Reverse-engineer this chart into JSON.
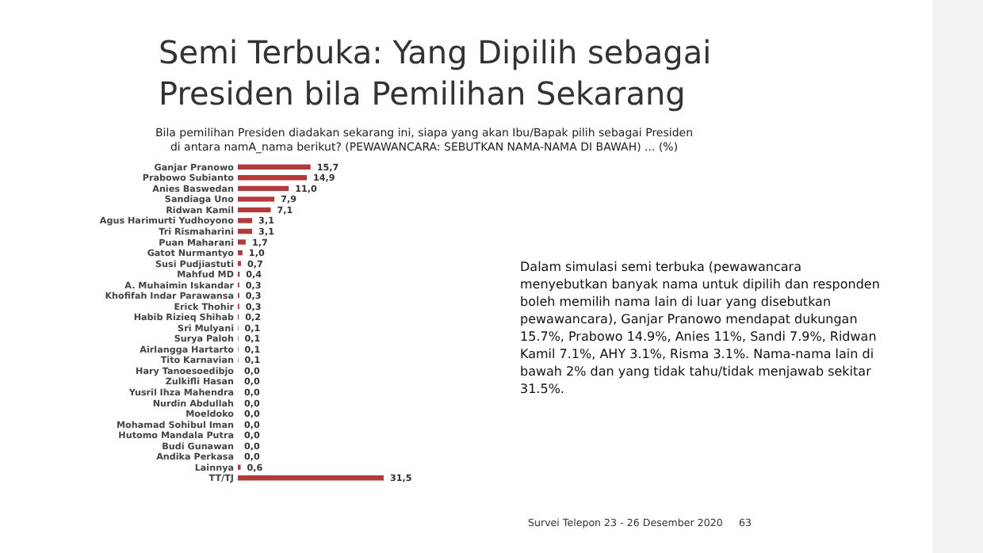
{
  "chart_data": {
    "type": "bar",
    "orientation": "horizontal",
    "title": "Semi Terbuka: Yang Dipilih sebagai Presiden bila Pemilihan Sekarang",
    "subtitle": "Bila pemilihan Presiden diadakan sekarang ini, siapa yang akan Ibu/Bapak pilih sebagai Presiden di antara namA_nama berikut? (PEWAWANCARA: SEBUTKAN NAMA-NAMA DI BAWAH) ... (%)",
    "categories": [
      "Ganjar Pranowo",
      "Prabowo Subianto",
      "Anies Baswedan",
      "Sandiaga Uno",
      "Ridwan Kamil",
      "Agus Harimurti Yudhoyono",
      "Tri Rismaharini",
      "Puan Maharani",
      "Gatot Nurmantyo",
      "Susi Pudjiastuti",
      "Mahfud MD",
      "A. Muhaimin Iskandar",
      "Khofifah Indar Parawansa",
      "Erick Thohir",
      "Habib Rizieq Shihab",
      "Sri Mulyani",
      "Surya Paloh",
      "Airlangga Hartarto",
      "Tito Karnavian",
      "Hary Tanoesoedibjo",
      "Zulkifli Hasan",
      "Yusril Ihza Mahendra",
      "Nurdin Abdullah",
      "Moeldoko",
      "Mohamad Sohibul Iman",
      "Hutomo Mandala Putra",
      "Budi Gunawan",
      "Andika Perkasa",
      "Lainnya",
      "TT/TJ"
    ],
    "values": [
      15.7,
      14.9,
      11.0,
      7.9,
      7.1,
      3.1,
      3.1,
      1.7,
      1.0,
      0.7,
      0.4,
      0.3,
      0.3,
      0.3,
      0.2,
      0.1,
      0.1,
      0.1,
      0.1,
      0.0,
      0.0,
      0.0,
      0.0,
      0.0,
      0.0,
      0.0,
      0.0,
      0.0,
      0.6,
      31.5
    ],
    "value_labels": [
      "15,7",
      "14,9",
      "11,0",
      "7,9",
      "7,1",
      "3,1",
      "3,1",
      "1,7",
      "1,0",
      "0,7",
      "0,4",
      "0,3",
      "0,3",
      "0,3",
      "0,2",
      "0,1",
      "0,1",
      "0,1",
      "0,1",
      "0,0",
      "0,0",
      "0,0",
      "0,0",
      "0,0",
      "0,0",
      "0,0",
      "0,0",
      "0,0",
      "0,6",
      "31,5"
    ],
    "color": "#b23a3a",
    "annotations": [
      "Dalam simulasi semi terbuka (pewawancara menyebutkan banyak nama untuk dipilih dan responden boleh memilih nama lain di luar yang disebutkan pewawancara), Ganjar Pranowo mendapat dukungan 15.7%, Prabowo 14.9%, Anies 11%, Sandi 7.9%, Ridwan Kamil 7.1%, AHY 3.1%, Risma 3.1%. Nama-nama lain di bawah 2% dan yang tidak tahu/tidak menjawab sekitar 31.5%.",
      "Survei Telepon 23 - 26 Desember 2020",
      "63"
    ]
  }
}
